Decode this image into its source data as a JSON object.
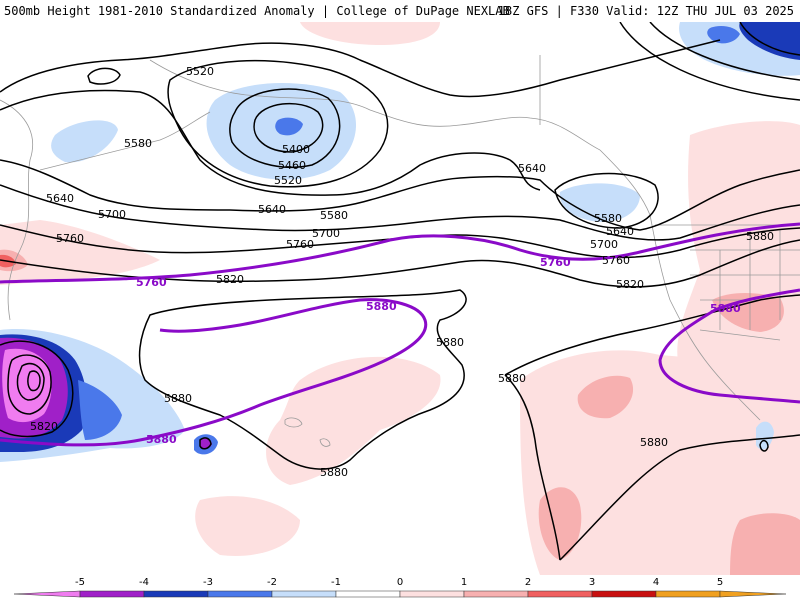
{
  "header": {
    "left_title": "500mb Height 1981-2010 Standardized Anomaly | College of DuPage NEXLAB",
    "right_title": "18Z GFS | F330 Valid: 12Z THU JUL 03 2025"
  },
  "colors": {
    "m5": "#f07cf0",
    "m4": "#a020c8",
    "m3": "#1a3ab8",
    "m2": "#4a78ea",
    "m1": "#c6defa",
    "p1": "#fde0e0",
    "p2": "#f7b0b0",
    "p3": "#f06060",
    "p4": "#c81010",
    "p5": "#f0a020",
    "highlight_contour": "#8a0ac8"
  },
  "contour_labels": {
    "h5400": "5400",
    "h5460": "5460",
    "h5520": "5520",
    "h5580": "5580",
    "h5640": "5640",
    "h5700": "5700",
    "h5760": "5760",
    "h5820": "5820",
    "h5880": "5880"
  },
  "colorbar": {
    "ticks": [
      "-5",
      "-4",
      "-3",
      "-2",
      "-1",
      "0",
      "1",
      "2",
      "3",
      "4",
      "5"
    ]
  }
}
